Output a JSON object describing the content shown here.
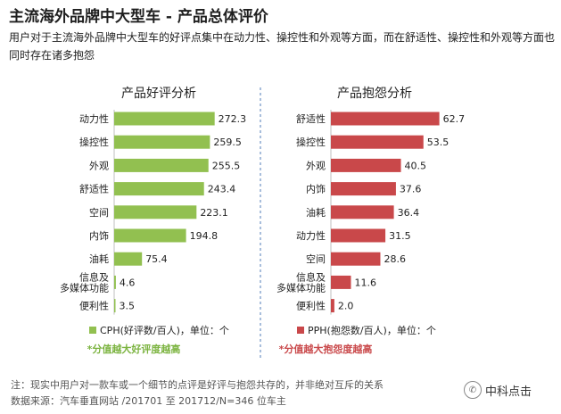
{
  "page": {
    "title": "主流海外品牌中大型车 - 产品总体评价",
    "subtitle": "用户对于主流海外品牌中大型车的好评点集中在动力性、操控性和外观等方面，而在舒适性、操控性和外观等方面也同时存在诸多抱怨",
    "footnote1": "注：现实中用户对一款车或一个细节的点评是好评与抱怨共存的，并非绝对互斥的关系",
    "footnote2": "数据来源：汽车垂直网站 /201701 至 201712/N=346 位车主",
    "logo_text": "中科点击",
    "logo_icon": "wechat-icon"
  },
  "chart_data": [
    {
      "type": "bar",
      "orientation": "horizontal",
      "title": "产品好评分析",
      "categories": [
        "动力性",
        "操控性",
        "外观",
        "舒适性",
        "空间",
        "内饰",
        "油耗",
        "信息及\n多媒体功能",
        "便利性"
      ],
      "series": [
        {
          "name": "CPH(好评数/百人)，单位：个",
          "values": [
            272.3,
            259.5,
            255.5,
            243.4,
            223.1,
            194.8,
            75.4,
            4.6,
            3.5
          ],
          "color": "#92C050"
        }
      ],
      "note": "*分值越大好评度越高",
      "note_color": "#7BB33F",
      "xlim": [
        0,
        290
      ],
      "legend_position": "bottom"
    },
    {
      "type": "bar",
      "orientation": "horizontal",
      "title": "产品抱怨分析",
      "categories": [
        "舒适性",
        "操控性",
        "外观",
        "内饰",
        "油耗",
        "动力性",
        "空间",
        "信息及\n多媒体功能",
        "便利性"
      ],
      "series": [
        {
          "name": "PPH(抱怨数/百人)，单位：个",
          "values": [
            62.7,
            53.5,
            40.5,
            37.6,
            36.4,
            31.5,
            28.6,
            11.6,
            2.0
          ],
          "color": "#C9484A"
        }
      ],
      "note": "*分值越大抱怨度越高",
      "note_color": "#C9484A",
      "xlim": [
        0,
        66
      ],
      "legend_position": "bottom"
    }
  ]
}
